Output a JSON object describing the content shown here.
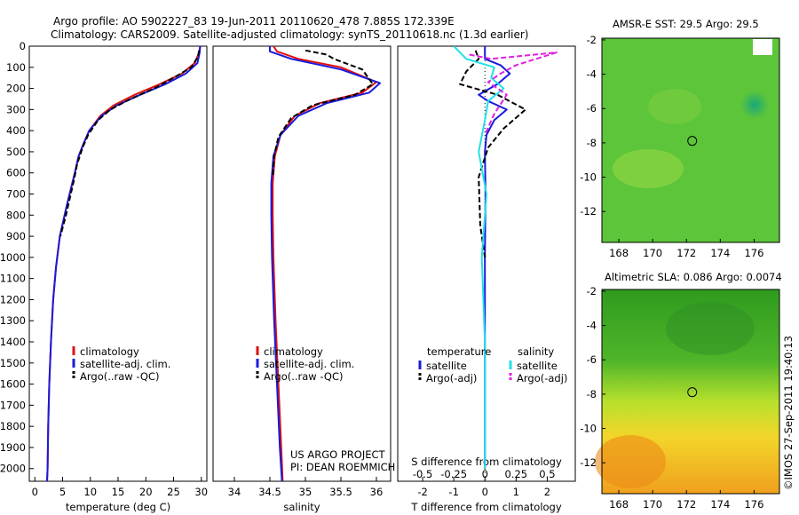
{
  "title_line1": "Argo profile: AO 5902227_83 19-Jun-2011 20110620_478 7.885S 172.339E",
  "title_line2": "Climatology: CARS2009. Satellite-adjusted climatology: synTS_20110618.nc (1.3d earlier)",
  "project_line1": "US ARGO PROJECT",
  "project_line2": "PI: DEAN ROEMMICH",
  "stamp": "©IMOS 27-Sep-2011 19:40:13",
  "colors": {
    "climatology": "#e01010",
    "satellite": "#1a1adc",
    "argo": "#000000",
    "cyan": "#22e0e8",
    "magenta": "#e020e0"
  },
  "chart_data": [
    {
      "type": "line",
      "xlabel": "temperature (deg C)",
      "xlim": [
        -1,
        31
      ],
      "xticks": [
        0,
        5,
        10,
        15,
        20,
        25,
        30
      ],
      "ylim": [
        0,
        2060
      ],
      "ylim_reversed": true,
      "yticks": [
        0,
        100,
        200,
        300,
        400,
        500,
        600,
        700,
        800,
        900,
        1000,
        1100,
        1200,
        1300,
        1400,
        1500,
        1600,
        1700,
        1800,
        1900,
        2000
      ],
      "legend": [
        "climatology",
        "satellite-adj. clim.",
        "Argo(..raw -QC)"
      ],
      "series": [
        {
          "name": "climatology",
          "color": "#e01010",
          "dash": "",
          "x": [
            29.8,
            29.6,
            28.8,
            26.5,
            22.5,
            18.0,
            14.2,
            11.8,
            9.8,
            8.8,
            7.9,
            7.2,
            5.8,
            4.5,
            3.8,
            3.3,
            2.9,
            2.6,
            2.4,
            2.3,
            2.2
          ],
          "y": [
            0,
            30,
            80,
            130,
            180,
            230,
            280,
            330,
            400,
            460,
            520,
            600,
            750,
            900,
            1050,
            1200,
            1400,
            1600,
            1800,
            2000,
            2060
          ]
        },
        {
          "name": "satellite-adj. clim.",
          "color": "#1a1adc",
          "dash": "",
          "x": [
            29.8,
            29.7,
            29.3,
            27.2,
            23.5,
            19.0,
            14.8,
            12.0,
            9.8,
            8.8,
            7.9,
            7.2,
            5.8,
            4.5,
            3.8,
            3.3,
            2.9,
            2.6,
            2.4,
            2.3,
            2.2
          ],
          "y": [
            0,
            30,
            80,
            130,
            180,
            230,
            280,
            330,
            400,
            460,
            520,
            600,
            750,
            900,
            1050,
            1200,
            1400,
            1600,
            1800,
            2000,
            2060
          ]
        },
        {
          "name": "Argo(..raw -QC)",
          "color": "#000000",
          "dash": "6,3",
          "x": [
            29.6,
            29.4,
            28.2,
            25.0,
            21.5,
            17.2,
            13.6,
            11.4,
            9.6,
            8.6,
            7.6,
            7.0,
            5.6,
            4.6
          ],
          "y": [
            20,
            50,
            100,
            150,
            200,
            250,
            300,
            350,
            420,
            480,
            560,
            640,
            800,
            900
          ]
        }
      ]
    },
    {
      "type": "line",
      "xlabel": "salinity",
      "xlim": [
        33.7,
        36.2
      ],
      "xticks": [
        34,
        34.5,
        35,
        35.5,
        36
      ],
      "ylim": [
        0,
        2060
      ],
      "ylim_reversed": true,
      "legend": [
        "climatology",
        "satellite-adj. clim.",
        "Argo(..raw -QC)"
      ],
      "series": [
        {
          "name": "climatology",
          "color": "#e01010",
          "dash": "",
          "x": [
            34.55,
            34.6,
            34.9,
            35.5,
            36.0,
            35.8,
            35.2,
            34.85,
            34.65,
            34.57,
            34.54,
            34.54,
            34.55,
            34.58,
            34.62,
            34.66,
            34.68
          ],
          "y": [
            0,
            25,
            60,
            100,
            170,
            220,
            270,
            330,
            420,
            520,
            650,
            800,
            1000,
            1300,
            1600,
            1900,
            2060
          ]
        },
        {
          "name": "satellite-adj. clim.",
          "color": "#1a1adc",
          "dash": "",
          "x": [
            34.5,
            34.5,
            34.8,
            35.5,
            36.05,
            35.9,
            35.3,
            34.9,
            34.65,
            34.55,
            34.52,
            34.52,
            34.53,
            34.56,
            34.6,
            34.64,
            34.67
          ],
          "y": [
            0,
            25,
            60,
            110,
            175,
            220,
            270,
            330,
            420,
            520,
            650,
            800,
            1000,
            1300,
            1600,
            1900,
            2060
          ]
        },
        {
          "name": "Argo(..raw -QC)",
          "color": "#000000",
          "dash": "6,3",
          "x": [
            35.0,
            35.3,
            35.4,
            35.8,
            35.95,
            35.7,
            35.1,
            34.8,
            34.62,
            34.56,
            34.54
          ],
          "y": [
            20,
            40,
            60,
            110,
            180,
            230,
            280,
            340,
            430,
            520,
            620
          ]
        }
      ]
    },
    {
      "type": "line",
      "xlabel": "T difference from climatology",
      "xlabel_top": "S difference from climatology",
      "xlim": [
        -2.8,
        2.9
      ],
      "xticks": [
        -2,
        -1,
        0,
        1,
        2
      ],
      "xticks_top_labels": [
        "-0.5",
        "-0.25",
        "0",
        "0.25",
        "0.5"
      ],
      "ylim": [
        0,
        2060
      ],
      "ylim_reversed": true,
      "legend_headers": [
        "temperature",
        "salinity"
      ],
      "legend": [
        "satellite",
        "Argo(-adj)",
        "satellite",
        "Argo(-adj)"
      ],
      "series": [
        {
          "name": "temperature satellite",
          "color": "#1a1adc",
          "dash": "",
          "x": [
            0.0,
            0.0,
            0.5,
            0.8,
            0.4,
            -0.2,
            0.1,
            0.7,
            0.3,
            0.05,
            0.0,
            0.02,
            0.0,
            0.0
          ],
          "y": [
            0,
            60,
            90,
            130,
            180,
            230,
            260,
            300,
            350,
            420,
            500,
            700,
            1000,
            2000
          ]
        },
        {
          "name": "temperature Argo(-adj)",
          "color": "#000000",
          "dash": "6,3",
          "x": [
            -0.3,
            -0.2,
            -0.6,
            -0.8,
            0.4,
            1.3,
            0.6,
            0.1,
            -0.2,
            -0.15,
            0.0
          ],
          "y": [
            20,
            60,
            120,
            180,
            230,
            300,
            390,
            480,
            620,
            850,
            1000
          ]
        },
        {
          "name": "salinity satellite",
          "color": "#22e0e8",
          "dash": "",
          "x": [
            -1.0,
            -0.6,
            0.3,
            0.2,
            0.6,
            0.1,
            0.0,
            -0.2,
            0.05,
            -0.1,
            0.0,
            0.0
          ],
          "y": [
            0,
            60,
            100,
            150,
            200,
            260,
            350,
            500,
            700,
            1000,
            1400,
            2000
          ]
        },
        {
          "name": "salinity Argo(-adj)",
          "color": "#e020e0",
          "dash": "6,3",
          "x": [
            -0.5,
            0.2,
            2.3,
            1.0,
            0.5,
            0.1,
            0.7,
            0.3,
            0.0
          ],
          "y": [
            40,
            60,
            30,
            90,
            130,
            170,
            230,
            320,
            420
          ]
        }
      ]
    },
    {
      "type": "heatmap",
      "title": "AMSR-E SST: 29.5 Argo: 29.5",
      "xlim": [
        167,
        177.5
      ],
      "ylim": [
        -13.8,
        -1.9
      ],
      "xticks": [
        168,
        170,
        172,
        174,
        176
      ],
      "yticks": [
        -2,
        -4,
        -6,
        -8,
        -10,
        -12
      ],
      "marker": {
        "lon": 172.34,
        "lat": -7.885
      }
    },
    {
      "type": "heatmap",
      "title": "Altimetric SLA: 0.086 Argo: 0.0074",
      "xlim": [
        167,
        177.5
      ],
      "ylim": [
        -13.8,
        -1.9
      ],
      "xticks": [
        168,
        170,
        172,
        174,
        176
      ],
      "yticks": [
        -2,
        -4,
        -6,
        -8,
        -10,
        -12
      ],
      "marker": {
        "lon": 172.34,
        "lat": -7.885
      }
    }
  ]
}
